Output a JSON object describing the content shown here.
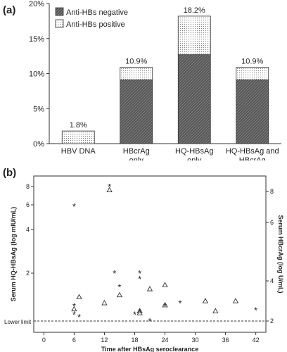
{
  "panel_a": {
    "label": "(a)",
    "legend": [
      "Anti-HBs negative",
      "Anti-HBs positive"
    ]
  },
  "panel_b": {
    "label": "(b)",
    "lower_limit_label": "Lower limit"
  },
  "colors": {
    "negative_fill": "#555555",
    "positive_fill": "#f2f2f2",
    "axis": "#333333"
  },
  "chart_data": [
    {
      "type": "bar",
      "stacked": true,
      "categories": [
        "HBV DNA",
        "HBcrAg only",
        "HQ-HBsAg only",
        "HQ-HBsAg and HBcrAg"
      ],
      "category_lines": [
        [
          "HBV DNA"
        ],
        [
          "HBcrAg",
          "only"
        ],
        [
          "HQ-HBsAg",
          "only"
        ],
        [
          "HQ-HBsAg and",
          "HBcrAg"
        ]
      ],
      "series": [
        {
          "name": "Anti-HBs negative",
          "values": [
            0,
            9.1,
            12.7,
            9.1
          ]
        },
        {
          "name": "Anti-HBs positive",
          "values": [
            1.8,
            1.8,
            5.5,
            1.8
          ]
        }
      ],
      "totals": [
        1.8,
        10.9,
        18.2,
        10.9
      ],
      "data_labels": [
        "1.8%",
        "10.9%",
        "18.2%",
        "10.9%"
      ],
      "ylim": [
        0,
        20
      ],
      "yticks": [
        0,
        5,
        10,
        15,
        20
      ],
      "ytick_labels": [
        "0%",
        "5%",
        "10%",
        "15%",
        "20%"
      ],
      "legend_position": "top-left"
    },
    {
      "type": "scatter",
      "xlabel": "Time after HBsAg seroclearance",
      "ylabel_left": "Serum HQ-HBsAg (log mIU/mL)",
      "ylabel_right": "Serum HBcrAg (log U/mL)",
      "xlim": [
        -2,
        44
      ],
      "xticks": [
        0,
        6,
        12,
        18,
        24,
        30,
        36,
        42
      ],
      "left_scale_values": [
        0.25,
        2,
        4,
        6,
        8
      ],
      "left_ticks": [
        2,
        4,
        6,
        8
      ],
      "right_ticks": [
        2,
        4,
        6,
        8
      ],
      "lower_limit": 2,
      "series": [
        {
          "name": "Serum HQ-HBsAg",
          "marker": "star",
          "axis": "left",
          "x": [
            6,
            6,
            6,
            7,
            13,
            14,
            15,
            18,
            19,
            19,
            19,
            21,
            24,
            27,
            42
          ],
          "y": [
            5.9,
            0.8,
            0.5,
            0.4,
            8.0,
            2.0,
            1.5,
            0.5,
            2.0,
            1.8,
            0.6,
            0.2,
            0.8,
            0.9,
            0.65
          ]
        },
        {
          "name": "Serum HBcrAg",
          "marker": "triangle",
          "axis": "right",
          "x": [
            6,
            7,
            12,
            13,
            15,
            19,
            19,
            21,
            24,
            24,
            32,
            34,
            38
          ],
          "y": [
            2.6,
            3.2,
            2.9,
            8.1,
            3.3,
            2.5,
            2.4,
            3.6,
            3.8,
            2.8,
            3.0,
            2.5,
            3.0
          ]
        }
      ],
      "legend_position": "none"
    }
  ]
}
